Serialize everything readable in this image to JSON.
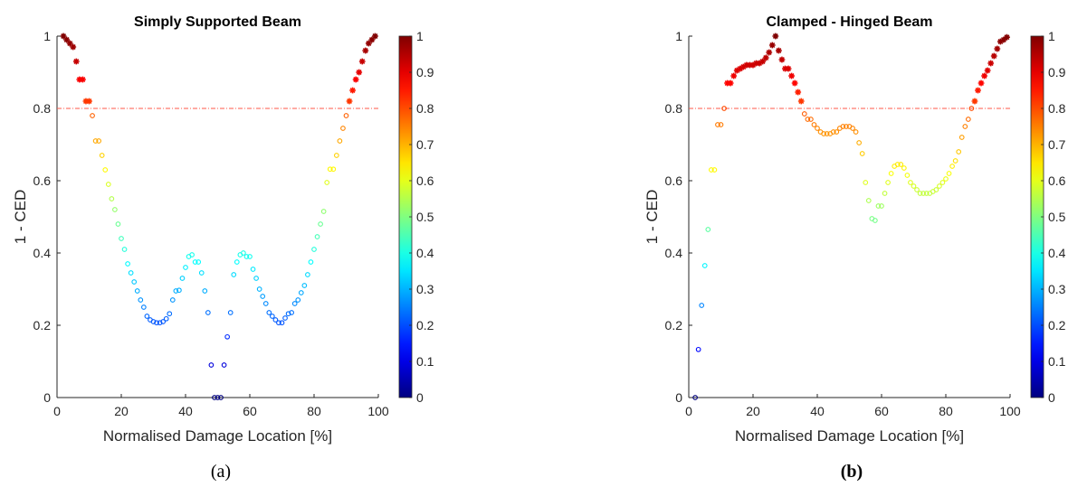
{
  "figure": {
    "panel_a": "(a)",
    "panel_b": "(b)"
  },
  "chart_data": [
    {
      "type": "scatter",
      "title": "Simply Supported Beam",
      "xlabel": "Normalised Damage Location [%]",
      "ylabel": "1 - CED",
      "xlim": [
        0,
        100
      ],
      "ylim": [
        0,
        1
      ],
      "xticks": [
        "0",
        "20",
        "40",
        "60",
        "80",
        "100"
      ],
      "yticks": [
        "0",
        "0.2",
        "0.4",
        "0.6",
        "0.8",
        "1"
      ],
      "threshold": 0.8,
      "colorbar": {
        "min": 0,
        "max": 1,
        "ticks": [
          "0",
          "0.1",
          "0.2",
          "0.3",
          "0.4",
          "0.5",
          "0.6",
          "0.7",
          "0.8",
          "0.9",
          "1"
        ]
      },
      "marker_rule": "asterisk where value above 0.8, open circle otherwise",
      "points": [
        [
          2,
          1.0
        ],
        [
          3,
          0.99
        ],
        [
          4,
          0.98
        ],
        [
          5,
          0.97
        ],
        [
          6,
          0.93
        ],
        [
          7,
          0.88
        ],
        [
          8,
          0.88
        ],
        [
          9,
          0.82
        ],
        [
          10,
          0.82
        ],
        [
          11,
          0.78
        ],
        [
          12,
          0.71
        ],
        [
          13,
          0.71
        ],
        [
          14,
          0.67
        ],
        [
          15,
          0.63
        ],
        [
          16,
          0.59
        ],
        [
          17,
          0.55
        ],
        [
          18,
          0.52
        ],
        [
          19,
          0.48
        ],
        [
          20,
          0.44
        ],
        [
          21,
          0.41
        ],
        [
          22,
          0.37
        ],
        [
          23,
          0.345
        ],
        [
          24,
          0.32
        ],
        [
          25,
          0.295
        ],
        [
          26,
          0.27
        ],
        [
          27,
          0.25
        ],
        [
          28,
          0.225
        ],
        [
          29,
          0.215
        ],
        [
          30,
          0.21
        ],
        [
          31,
          0.207
        ],
        [
          32,
          0.207
        ],
        [
          33,
          0.21
        ],
        [
          34,
          0.218
        ],
        [
          35,
          0.232
        ],
        [
          36,
          0.27
        ],
        [
          37,
          0.295
        ],
        [
          38,
          0.297
        ],
        [
          39,
          0.33
        ],
        [
          40,
          0.36
        ],
        [
          41,
          0.39
        ],
        [
          42,
          0.395
        ],
        [
          43,
          0.375
        ],
        [
          44,
          0.375
        ],
        [
          45,
          0.345
        ],
        [
          46,
          0.295
        ],
        [
          47,
          0.235
        ],
        [
          48,
          0.09
        ],
        [
          49,
          0.0
        ],
        [
          50,
          0.0
        ],
        [
          51,
          0.0
        ],
        [
          52,
          0.09
        ],
        [
          53,
          0.168
        ],
        [
          54,
          0.235
        ],
        [
          55,
          0.34
        ],
        [
          56,
          0.375
        ],
        [
          57,
          0.395
        ],
        [
          58,
          0.4
        ],
        [
          59,
          0.39
        ],
        [
          60,
          0.39
        ],
        [
          61,
          0.355
        ],
        [
          62,
          0.33
        ],
        [
          63,
          0.3
        ],
        [
          64,
          0.28
        ],
        [
          65,
          0.26
        ],
        [
          66,
          0.235
        ],
        [
          67,
          0.225
        ],
        [
          68,
          0.215
        ],
        [
          69,
          0.207
        ],
        [
          70,
          0.207
        ],
        [
          71,
          0.22
        ],
        [
          72,
          0.232
        ],
        [
          73,
          0.235
        ],
        [
          74,
          0.26
        ],
        [
          75,
          0.27
        ],
        [
          76,
          0.29
        ],
        [
          77,
          0.31
        ],
        [
          78,
          0.34
        ],
        [
          79,
          0.375
        ],
        [
          80,
          0.41
        ],
        [
          81,
          0.445
        ],
        [
          82,
          0.48
        ],
        [
          83,
          0.515
        ],
        [
          84,
          0.595
        ],
        [
          85,
          0.632
        ],
        [
          86,
          0.632
        ],
        [
          87,
          0.67
        ],
        [
          88,
          0.71
        ],
        [
          89,
          0.745
        ],
        [
          90,
          0.78
        ],
        [
          91,
          0.82
        ],
        [
          92,
          0.85
        ],
        [
          93,
          0.88
        ],
        [
          94,
          0.9
        ],
        [
          95,
          0.93
        ],
        [
          96,
          0.96
        ],
        [
          97,
          0.98
        ],
        [
          98,
          0.99
        ],
        [
          99,
          1.0
        ]
      ]
    },
    {
      "type": "scatter",
      "title": "Clamped - Hinged Beam",
      "xlabel": "Normalised Damage Location [%]",
      "ylabel": "1 - CED",
      "xlim": [
        0,
        100
      ],
      "ylim": [
        0,
        1
      ],
      "xticks": [
        "0",
        "20",
        "40",
        "60",
        "80",
        "100"
      ],
      "yticks": [
        "0",
        "0.2",
        "0.4",
        "0.6",
        "0.8",
        "1"
      ],
      "threshold": 0.8,
      "colorbar": {
        "min": 0,
        "max": 1,
        "ticks": [
          "0",
          "0.1",
          "0.2",
          "0.3",
          "0.4",
          "0.5",
          "0.6",
          "0.7",
          "0.8",
          "0.9",
          "1"
        ]
      },
      "marker_rule": "asterisk where value above 0.8, open circle otherwise",
      "points": [
        [
          2,
          0.0
        ],
        [
          3,
          0.133
        ],
        [
          4,
          0.255
        ],
        [
          5,
          0.365
        ],
        [
          6,
          0.465
        ],
        [
          7,
          0.63
        ],
        [
          8,
          0.63
        ],
        [
          9,
          0.755
        ],
        [
          10,
          0.755
        ],
        [
          11,
          0.8
        ],
        [
          12,
          0.87
        ],
        [
          13,
          0.87
        ],
        [
          14,
          0.89
        ],
        [
          15,
          0.905
        ],
        [
          16,
          0.91
        ],
        [
          17,
          0.915
        ],
        [
          18,
          0.92
        ],
        [
          19,
          0.92
        ],
        [
          20,
          0.92
        ],
        [
          21,
          0.925
        ],
        [
          22,
          0.925
        ],
        [
          23,
          0.93
        ],
        [
          24,
          0.94
        ],
        [
          25,
          0.955
        ],
        [
          26,
          0.975
        ],
        [
          27,
          1.0
        ],
        [
          28,
          0.96
        ],
        [
          29,
          0.935
        ],
        [
          30,
          0.91
        ],
        [
          31,
          0.91
        ],
        [
          32,
          0.89
        ],
        [
          33,
          0.87
        ],
        [
          34,
          0.845
        ],
        [
          35,
          0.82
        ],
        [
          36,
          0.785
        ],
        [
          37,
          0.77
        ],
        [
          38,
          0.77
        ],
        [
          39,
          0.755
        ],
        [
          40,
          0.745
        ],
        [
          41,
          0.735
        ],
        [
          42,
          0.73
        ],
        [
          43,
          0.73
        ],
        [
          44,
          0.73
        ],
        [
          45,
          0.735
        ],
        [
          46,
          0.735
        ],
        [
          47,
          0.745
        ],
        [
          48,
          0.75
        ],
        [
          49,
          0.75
        ],
        [
          50,
          0.75
        ],
        [
          51,
          0.745
        ],
        [
          52,
          0.735
        ],
        [
          53,
          0.705
        ],
        [
          54,
          0.675
        ],
        [
          55,
          0.595
        ],
        [
          56,
          0.545
        ],
        [
          57,
          0.495
        ],
        [
          58,
          0.49
        ],
        [
          59,
          0.53
        ],
        [
          60,
          0.53
        ],
        [
          61,
          0.565
        ],
        [
          62,
          0.595
        ],
        [
          63,
          0.62
        ],
        [
          64,
          0.64
        ],
        [
          65,
          0.645
        ],
        [
          66,
          0.645
        ],
        [
          67,
          0.635
        ],
        [
          68,
          0.615
        ],
        [
          69,
          0.595
        ],
        [
          70,
          0.585
        ],
        [
          71,
          0.575
        ],
        [
          72,
          0.565
        ],
        [
          73,
          0.565
        ],
        [
          74,
          0.565
        ],
        [
          75,
          0.565
        ],
        [
          76,
          0.57
        ],
        [
          77,
          0.575
        ],
        [
          78,
          0.585
        ],
        [
          79,
          0.595
        ],
        [
          80,
          0.605
        ],
        [
          81,
          0.62
        ],
        [
          82,
          0.64
        ],
        [
          83,
          0.655
        ],
        [
          84,
          0.68
        ],
        [
          85,
          0.72
        ],
        [
          86,
          0.75
        ],
        [
          87,
          0.77
        ],
        [
          88,
          0.8
        ],
        [
          89,
          0.82
        ],
        [
          90,
          0.85
        ],
        [
          91,
          0.87
        ],
        [
          92,
          0.89
        ],
        [
          93,
          0.905
        ],
        [
          94,
          0.925
        ],
        [
          95,
          0.945
        ],
        [
          96,
          0.965
        ],
        [
          97,
          0.985
        ],
        [
          98,
          0.99
        ],
        [
          99,
          0.997
        ]
      ]
    }
  ]
}
